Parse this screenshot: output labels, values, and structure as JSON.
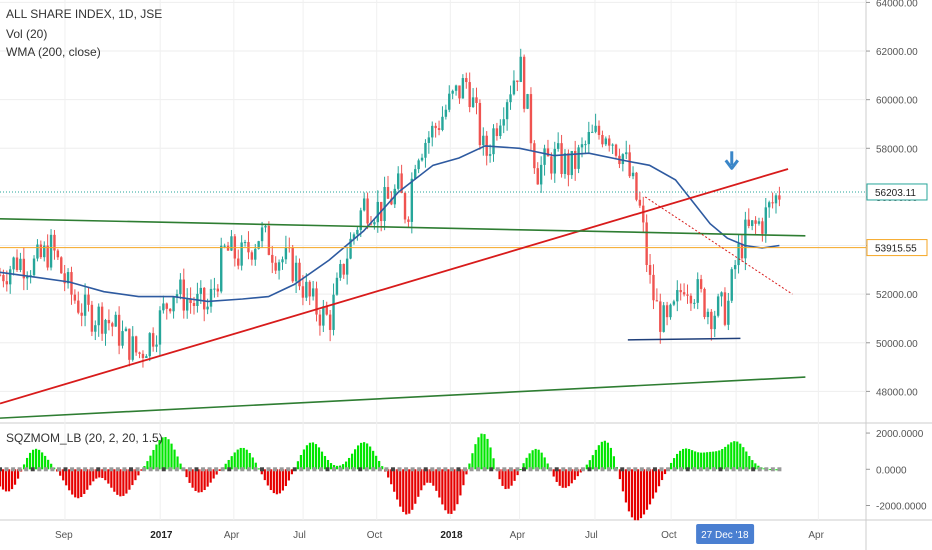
{
  "header": {
    "title": "ALL SHARE INDEX, 1D, JSE",
    "volume_label": "Vol (20)",
    "wma_label": "WMA (200, close)"
  },
  "indicator": {
    "label": "SQZMOM_LB (20, 2, 20, 1.5)"
  },
  "colors": {
    "up_candle": "#26a69a",
    "down_candle": "#ef5350",
    "wma_line": "#2e5aa0",
    "red_trendline": "#d81b1b",
    "green_line": "#2e7d32",
    "orange_line": "#f5a623",
    "dotted_price_line": "#26a69a",
    "arrow": "#3a86c8",
    "momentum_pos": "#00e600",
    "momentum_neg": "#e60000",
    "date_badge": "#4a7fd1"
  },
  "chart_data": [
    {
      "type": "candlestick",
      "title": "ALL SHARE INDEX, 1D, JSE",
      "x_ticks": [
        "Sep",
        "2017",
        "Apr",
        "Jul",
        "Oct",
        "2018",
        "Apr",
        "Jul",
        "Oct",
        "27 Dec '18",
        "Apr"
      ],
      "x_ticks_bold": [
        "2017",
        "2018"
      ],
      "highlighted_x_tick": "27 Dec '18",
      "y_ticks": [
        "64000.00",
        "62000.00",
        "60000.00",
        "58000.00",
        "56000.00",
        "54000.00",
        "52000.00",
        "50000.00",
        "48000.00"
      ],
      "ylim": [
        46700,
        64100
      ],
      "last_price": "56203.11",
      "last_price_value": 56203.11,
      "level_price": "53915.55",
      "level_price_value": 53915.55,
      "series": [
        {
          "name": "WMA (200, close)",
          "t": [
            0,
            0.04,
            0.08,
            0.12,
            0.16,
            0.2,
            0.24,
            0.28,
            0.31,
            0.34,
            0.38,
            0.42,
            0.46,
            0.5,
            0.53,
            0.56,
            0.6,
            0.64,
            0.68,
            0.72,
            0.75,
            0.78,
            0.8,
            0.82,
            0.84,
            0.86,
            0.88,
            0.9
          ],
          "values": [
            52900,
            52700,
            52500,
            52100,
            51900,
            51900,
            51700,
            51800,
            51900,
            52400,
            53400,
            54600,
            56200,
            57300,
            57600,
            58100,
            58000,
            57700,
            57800,
            57500,
            57300,
            56700,
            55800,
            54900,
            54300,
            54000,
            53900,
            54000
          ]
        },
        {
          "name": "Close",
          "t": [
            0,
            0.02,
            0.04,
            0.06,
            0.08,
            0.1,
            0.12,
            0.14,
            0.16,
            0.18,
            0.2,
            0.22,
            0.24,
            0.26,
            0.28,
            0.3,
            0.32,
            0.34,
            0.36,
            0.38,
            0.4,
            0.42,
            0.44,
            0.46,
            0.47,
            0.48,
            0.5,
            0.52,
            0.54,
            0.56,
            0.58,
            0.6,
            0.62,
            0.64,
            0.66,
            0.68,
            0.7,
            0.72,
            0.74,
            0.75,
            0.76,
            0.77,
            0.78,
            0.79,
            0.8,
            0.82,
            0.84,
            0.85,
            0.86,
            0.88,
            0.9
          ],
          "values": [
            52800,
            53400,
            53200,
            53900,
            52100,
            51200,
            51100,
            50300,
            49500,
            50600,
            52200,
            51700,
            51400,
            53800,
            53500,
            54500,
            53600,
            53100,
            51600,
            50900,
            53600,
            55700,
            55500,
            56300,
            55200,
            57900,
            58700,
            59900,
            60800,
            57600,
            59800,
            61500,
            57100,
            57600,
            57200,
            58300,
            58800,
            57700,
            55300,
            52500,
            51200,
            50600,
            51400,
            52600,
            52300,
            51300,
            51400,
            53400,
            54400,
            55000,
            56200
          ]
        }
      ],
      "annotations": [
        {
          "type": "trendline",
          "name": "red rising trendline",
          "from": {
            "t": 0.0,
            "value": 47500
          },
          "to": {
            "t": 0.91,
            "value": 57150
          }
        },
        {
          "type": "trendline",
          "name": "green upper line",
          "from": {
            "t": 0.0,
            "value": 55100
          },
          "to": {
            "t": 0.93,
            "value": 54400
          }
        },
        {
          "type": "trendline",
          "name": "green lower line",
          "from": {
            "t": 0.0,
            "value": 46900
          },
          "to": {
            "t": 0.93,
            "value": 48590
          }
        },
        {
          "type": "trendline",
          "name": "navy support line",
          "from": {
            "t": 0.725,
            "value": 50120
          },
          "to": {
            "t": 0.855,
            "value": 50180
          }
        },
        {
          "type": "dotted",
          "name": "red dotted downtrend",
          "from": {
            "t": 0.745,
            "value": 56000
          },
          "to": {
            "t": 0.915,
            "value": 52000
          }
        },
        {
          "type": "arrow",
          "name": "down arrow",
          "at": {
            "t": 0.845,
            "value": 57300
          }
        }
      ]
    },
    {
      "type": "bar",
      "title": "SQZMOM_LB (20, 2, 20, 1.5)",
      "y_ticks": [
        "2000.0000",
        "0.0000",
        "-2000.0000"
      ],
      "ylim": [
        -2800,
        2500
      ],
      "peaks": {
        "t": [
          0.01,
          0.04,
          0.09,
          0.14,
          0.19,
          0.23,
          0.28,
          0.32,
          0.36,
          0.42,
          0.47,
          0.52,
          0.56,
          0.58,
          0.62,
          0.65,
          0.7,
          0.73,
          0.75,
          0.79,
          0.82,
          0.85
        ],
        "values": [
          -1300,
          1200,
          -1600,
          -1500,
          1800,
          -1300,
          1200,
          -1400,
          1500,
          1500,
          -2500,
          -2500,
          2400,
          -1600,
          1200,
          -1100,
          1700,
          -2400,
          -1300,
          1100,
          800,
          1500
        ]
      }
    }
  ]
}
